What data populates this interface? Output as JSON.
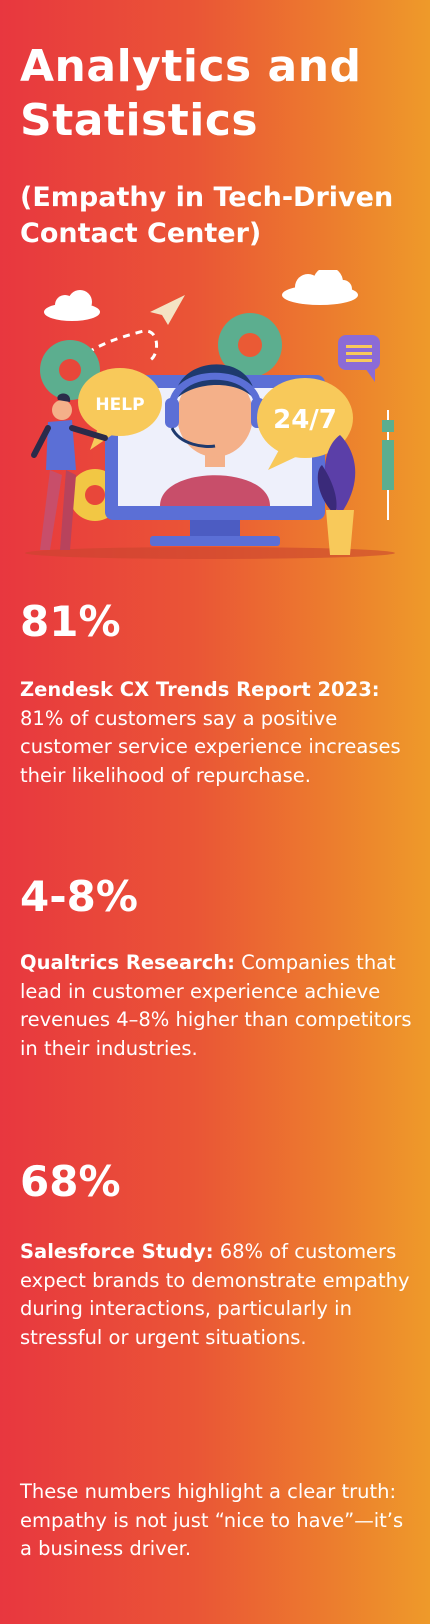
{
  "header": {
    "title_line1": "Analytics and",
    "title_line2": "Statistics",
    "subtitle_line1": "(Empathy in Tech-Driven",
    "subtitle_line2": "Contact Center)"
  },
  "illustration": {
    "help_bubble": "HELP",
    "hours_bubble": "24/7",
    "icons": [
      "cloud-icon",
      "paper-plane-icon",
      "gear-icon",
      "headset-agent-icon",
      "monitor-icon",
      "chat-icon",
      "plant-icon",
      "person-icon"
    ],
    "colors": {
      "monitor": "#5b6fd6",
      "screen": "#eef0fb",
      "bubble": "#f8c95a",
      "gear": "#5cae8f",
      "chat": "#8b6bd6"
    }
  },
  "stats": [
    {
      "value": "81%",
      "source": "Zendesk CX Trends Report 2023:",
      "text": " 81% of customers say a positive customer service experience increases their likelihood of repurchase."
    },
    {
      "value": "4-8%",
      "source": "Qualtrics Research:",
      "text": " Companies that lead in customer experience achieve revenues 4–8% higher than competitors in their industries."
    },
    {
      "value": "68%",
      "source": "Salesforce Study:",
      "text": " 68% of customers expect brands to demonstrate empathy during interactions, particularly in stressful or urgent situations."
    }
  ],
  "closing": "These numbers highlight a clear truth: empathy is not just “nice to have”—it’s a business driver."
}
